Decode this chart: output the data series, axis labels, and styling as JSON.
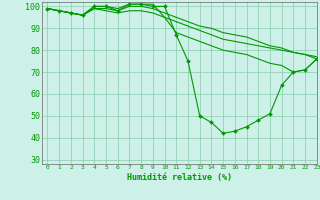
{
  "xlabel": "Humidité relative (%)",
  "background_color": "#cdf0e8",
  "grid_color": "#88ccaa",
  "line_color": "#009900",
  "xlim": [
    -0.5,
    23
  ],
  "ylim": [
    28,
    102
  ],
  "yticks": [
    30,
    40,
    50,
    60,
    70,
    80,
    90,
    100
  ],
  "xticks": [
    0,
    1,
    2,
    3,
    4,
    5,
    6,
    7,
    8,
    9,
    10,
    11,
    12,
    13,
    14,
    15,
    16,
    17,
    18,
    19,
    20,
    21,
    22,
    23
  ],
  "series_main": [
    99,
    98,
    97,
    96,
    100,
    100,
    98,
    101,
    101,
    100,
    100,
    87,
    75,
    50,
    47,
    42,
    43,
    45,
    48,
    51,
    64,
    70,
    71,
    76
  ],
  "series_lines": [
    [
      99,
      98,
      97,
      96,
      100,
      100,
      99,
      101,
      101,
      101,
      95,
      88,
      86,
      84,
      82,
      80,
      79,
      78,
      76,
      74,
      73,
      70,
      71,
      76
    ],
    [
      99,
      98,
      97,
      96,
      99,
      99,
      98,
      100,
      100,
      99,
      97,
      95,
      93,
      91,
      90,
      88,
      87,
      86,
      84,
      82,
      81,
      79,
      78,
      76
    ],
    [
      99,
      98,
      97,
      96,
      99,
      98,
      97,
      98,
      98,
      97,
      95,
      93,
      91,
      89,
      87,
      85,
      84,
      83,
      82,
      81,
      80,
      79,
      78,
      77
    ]
  ]
}
